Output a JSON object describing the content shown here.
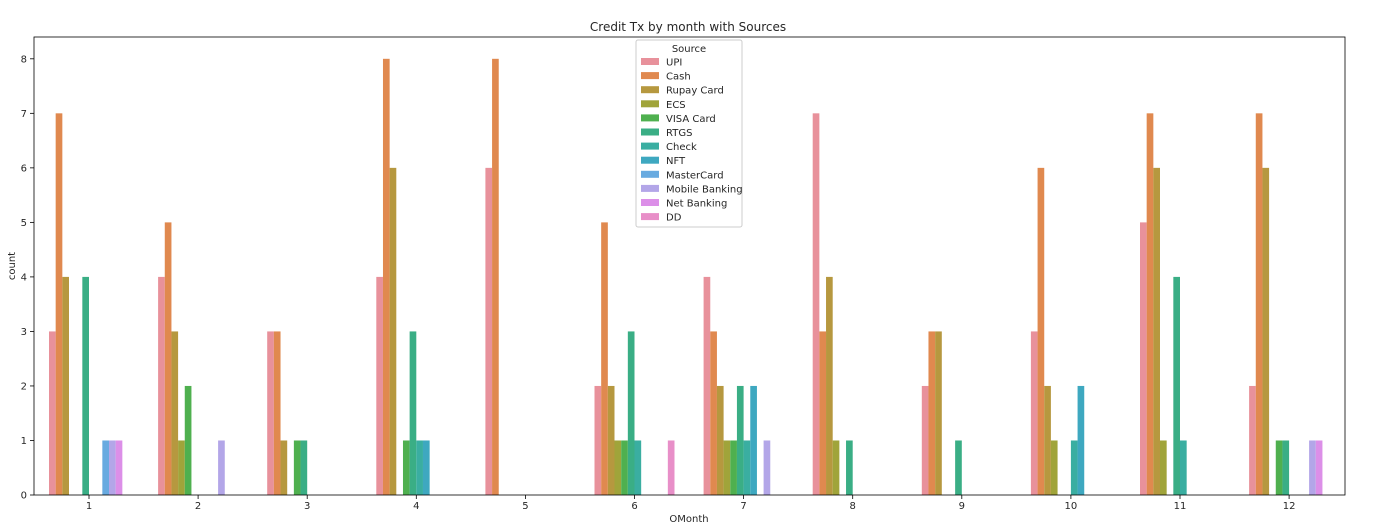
{
  "chart_data": {
    "type": "bar",
    "title": "Credit Tx by month with Sources",
    "xlabel": "OMonth",
    "ylabel": "count",
    "ylim": [
      0,
      8.4
    ],
    "yticks": [
      "0",
      "1",
      "2",
      "3",
      "4",
      "5",
      "6",
      "7",
      "8"
    ],
    "categories": [
      "1",
      "2",
      "3",
      "4",
      "5",
      "6",
      "7",
      "8",
      "9",
      "10",
      "11",
      "12"
    ],
    "grid": false,
    "legend_title": "Source",
    "legend_position": "top-center",
    "series": [
      {
        "name": "UPI",
        "color": "#e8919b",
        "values": [
          3,
          4,
          3,
          4,
          6,
          2,
          4,
          7,
          2,
          3,
          5,
          2
        ]
      },
      {
        "name": "Cash",
        "color": "#e0894f",
        "values": [
          7,
          5,
          3,
          8,
          8,
          5,
          3,
          3,
          3,
          6,
          7,
          7
        ]
      },
      {
        "name": "Rupay Card",
        "color": "#b6983f",
        "values": [
          4,
          3,
          1,
          6,
          0,
          2,
          2,
          4,
          3,
          2,
          6,
          6
        ]
      },
      {
        "name": "ECS",
        "color": "#a0a43a",
        "values": [
          0,
          1,
          0,
          0,
          0,
          1,
          1,
          1,
          0,
          1,
          1,
          0
        ]
      },
      {
        "name": "VISA Card",
        "color": "#4fb04f",
        "values": [
          0,
          2,
          1,
          1,
          0,
          1,
          1,
          0,
          0,
          0,
          0,
          1
        ]
      },
      {
        "name": "RTGS",
        "color": "#3aae85",
        "values": [
          4,
          0,
          1,
          3,
          0,
          3,
          2,
          1,
          1,
          0,
          4,
          1
        ]
      },
      {
        "name": "Check",
        "color": "#3aaea1",
        "values": [
          0,
          0,
          0,
          1,
          0,
          1,
          1,
          0,
          0,
          1,
          1,
          0
        ]
      },
      {
        "name": "NFT",
        "color": "#3ea8c0",
        "values": [
          0,
          0,
          0,
          1,
          0,
          0,
          2,
          0,
          0,
          2,
          0,
          0
        ]
      },
      {
        "name": "MasterCard",
        "color": "#68aae0",
        "values": [
          1,
          0,
          0,
          0,
          0,
          0,
          0,
          0,
          0,
          0,
          0,
          0
        ]
      },
      {
        "name": "Mobile Banking",
        "color": "#b3a6e8",
        "values": [
          1,
          1,
          0,
          0,
          0,
          0,
          1,
          0,
          0,
          0,
          0,
          1
        ]
      },
      {
        "name": "Net Banking",
        "color": "#dc8fe8",
        "values": [
          1,
          0,
          0,
          0,
          0,
          0,
          0,
          0,
          0,
          0,
          0,
          1
        ]
      },
      {
        "name": "DD",
        "color": "#e88fc8",
        "values": [
          0,
          0,
          0,
          0,
          0,
          1,
          0,
          0,
          0,
          0,
          0,
          0
        ]
      }
    ]
  }
}
